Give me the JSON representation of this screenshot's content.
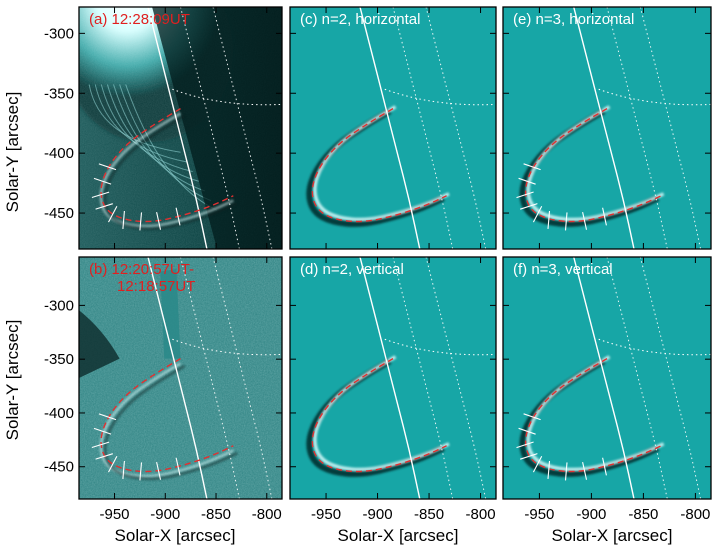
{
  "figure": {
    "panels": [
      {
        "label": "(a) 12:28:09UT",
        "label_line2": "",
        "label_color": "#e02020",
        "kind": "observation"
      },
      {
        "label": "(c) n=2, horizontal",
        "label_line2": "",
        "label_color": "#ffffff",
        "kind": "model"
      },
      {
        "label": "(e) n=3, horizontal",
        "label_line2": "",
        "label_color": "#ffffff",
        "kind": "model"
      },
      {
        "label": "(b) 12:20:57UT-",
        "label_line2": "12:18:57UT",
        "label_color": "#e02020",
        "kind": "difference"
      },
      {
        "label": "(d) n=2, vertical",
        "label_line2": "",
        "label_color": "#ffffff",
        "kind": "model"
      },
      {
        "label": "(f) n=3, vertical",
        "label_line2": "",
        "label_color": "#ffffff",
        "kind": "model"
      }
    ],
    "ylabel": "Solar-Y [arcsec]",
    "xlabel": "Solar-X [arcsec]",
    "y_ticks": [
      "-300",
      "-350",
      "-400",
      "-450"
    ],
    "x_ticks": [
      "-950",
      "-900",
      "-850",
      "-800"
    ],
    "colors": {
      "model_bg": "#17a6a6",
      "obs_bg": "#063636",
      "diff_bg": "#3a8e8e",
      "loop_fit": "#e23030",
      "limb": "#ffffff"
    }
  },
  "chart_data": {
    "type": "image-grid",
    "x_range": [
      -985,
      -785
    ],
    "y_range_row1": [
      -480,
      -278
    ],
    "y_range_row2": [
      -480,
      -255
    ],
    "xlabel": "Solar-X [arcsec]",
    "ylabel": "Solar-Y [arcsec]",
    "x_ticks": [
      -950,
      -900,
      -850,
      -800
    ],
    "y_ticks": [
      -300,
      -350,
      -400,
      -450
    ]
  }
}
